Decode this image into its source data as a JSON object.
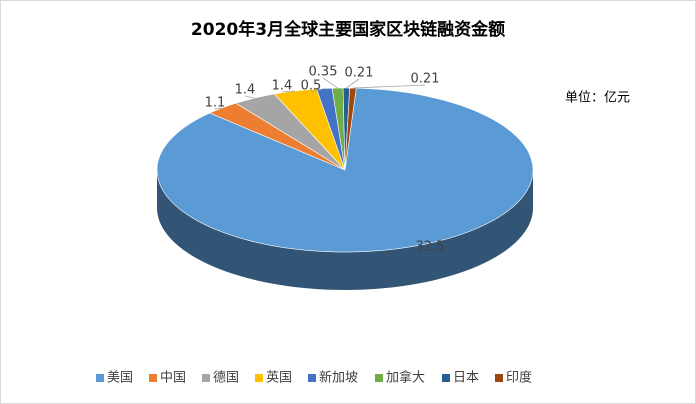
{
  "chart_data": {
    "type": "pie",
    "title": "2020年3月全球主要国家区块链融资金额",
    "annotation": "单位：亿元",
    "categories": [
      "美国",
      "中国",
      "德国",
      "英国",
      "新加坡",
      "加拿大",
      "日本",
      "印度"
    ],
    "values": [
      32.5,
      1.1,
      1.4,
      1.4,
      0.5,
      0.35,
      0.21,
      0.21
    ],
    "colors": [
      "#5b9bd5",
      "#ed7d31",
      "#a5a5a5",
      "#ffc000",
      "#4472c4",
      "#70ad47",
      "#255e91",
      "#9e480e"
    ],
    "legend": "bottom"
  }
}
